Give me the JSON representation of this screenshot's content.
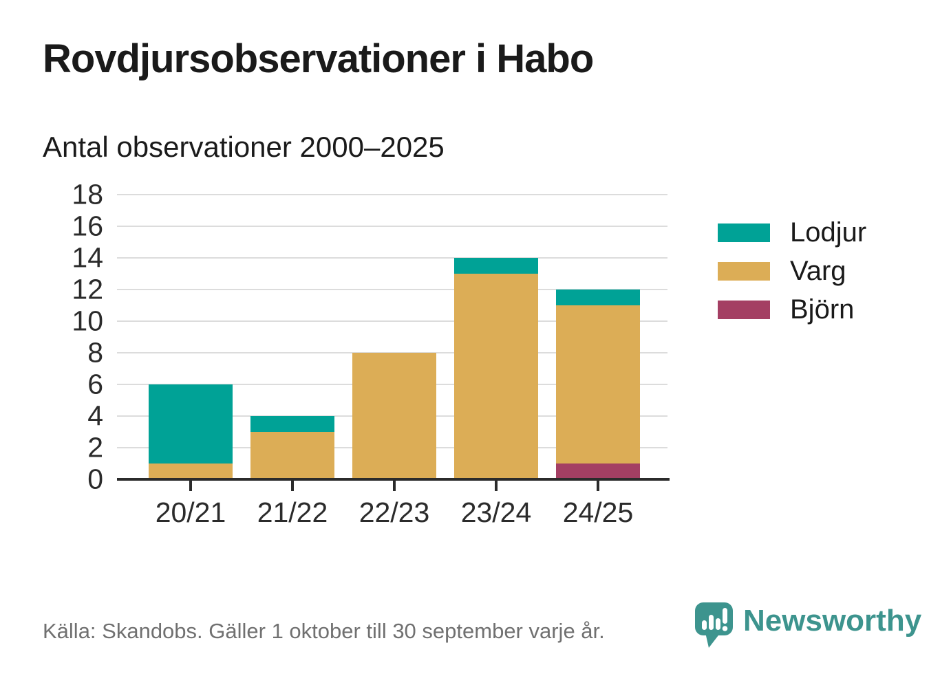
{
  "header": {
    "title": "Rovdjursobservationer i Habo",
    "subtitle": "Antal observationer 2000–2025"
  },
  "footer": {
    "source": "Källa: Skandobs. Gäller 1 oktober till 30 september varje år.",
    "brand": "Newsworthy",
    "brand_color": "#3D948E"
  },
  "chart_data": {
    "type": "bar",
    "stacked": true,
    "title": "Rovdjursobservationer i Habo",
    "subtitle": "Antal observationer 2000–2025",
    "categories": [
      "20/21",
      "21/22",
      "22/23",
      "23/24",
      "24/25"
    ],
    "series": [
      {
        "name": "Lodjur",
        "color": "#00A296",
        "values": [
          5,
          1,
          0,
          1,
          1
        ]
      },
      {
        "name": "Varg",
        "color": "#DCAD56",
        "values": [
          1,
          3,
          8,
          13,
          10
        ]
      },
      {
        "name": "Björn",
        "color": "#A43F63",
        "values": [
          0,
          0,
          0,
          0,
          1
        ]
      }
    ],
    "stack_order_bottom_to_top": [
      "Björn",
      "Varg",
      "Lodjur"
    ],
    "totals": [
      6,
      4,
      8,
      14,
      12
    ],
    "xlabel": "",
    "ylabel": "",
    "ylim": [
      0,
      18
    ],
    "yticks": [
      0,
      2,
      4,
      6,
      8,
      10,
      12,
      14,
      16,
      18
    ],
    "grid": true,
    "legend_position": "right",
    "axis_color": "#2B2B2B",
    "grid_color": "#DCDCDC",
    "tick_label_color": "#2B2B2B"
  }
}
